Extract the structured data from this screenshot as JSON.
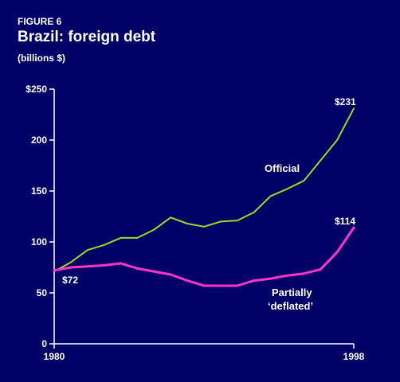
{
  "header": {
    "figure_label": "FIGURE 6",
    "title": "Brazil: foreign debt",
    "subtitle": "(billions $)"
  },
  "colors": {
    "background": "#000066",
    "official": "#99dd22",
    "deflated": "#ff33cc",
    "axis": "#ffffff"
  },
  "chart_data": {
    "type": "line",
    "title": "Brazil: foreign debt",
    "xlabel": "",
    "ylabel": "",
    "xlim": [
      1980,
      1998
    ],
    "ylim": [
      0,
      250
    ],
    "x_tick_labels": [
      "1980",
      "1998"
    ],
    "y_tick_labels": [
      "$250",
      "200",
      "150",
      "100",
      "50",
      "0"
    ],
    "x": [
      1980,
      1981,
      1982,
      1983,
      1984,
      1985,
      1986,
      1987,
      1988,
      1989,
      1990,
      1991,
      1992,
      1993,
      1994,
      1995,
      1996,
      1997,
      1998
    ],
    "series": [
      {
        "name": "Official",
        "values": [
          71,
          80,
          92,
          97,
          104,
          104,
          112,
          124,
          118,
          115,
          120,
          121,
          129,
          145,
          152,
          160,
          180,
          200,
          231
        ]
      },
      {
        "name": "Partially 'deflated'",
        "values": [
          72,
          75,
          76,
          77,
          79,
          74,
          71,
          68,
          62,
          57,
          57,
          57,
          62,
          64,
          67,
          69,
          73,
          90,
          114
        ]
      }
    ],
    "legend_labels": {
      "official": "Official",
      "deflated_line1": "Partially",
      "deflated_line2": "‘deflated’"
    },
    "annotations": {
      "start_value": "$72",
      "official_end": "$231",
      "deflated_end": "$114"
    },
    "grid": false
  }
}
